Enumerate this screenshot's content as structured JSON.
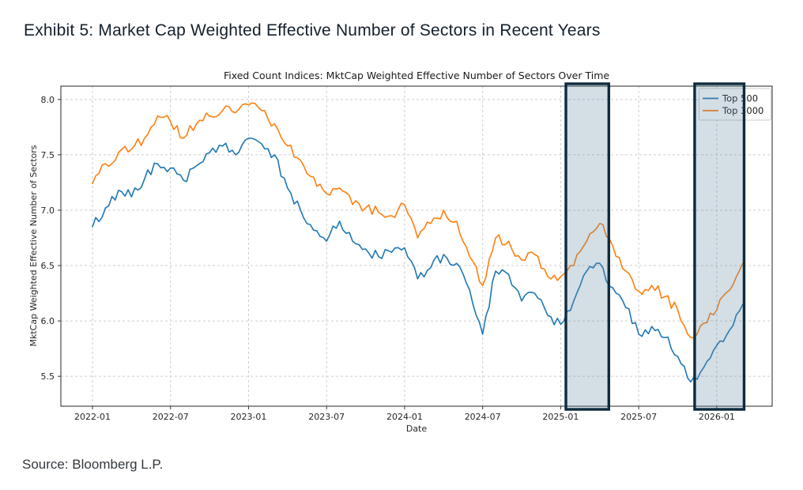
{
  "header": {
    "title": "Exhibit 5: Market Cap Weighted Effective Number of Sectors in Recent Years"
  },
  "footer": {
    "source": "Source: Bloomberg L.P."
  },
  "chart_data": {
    "type": "line",
    "title": "Fixed Count Indices: MktCap Weighted Effective Number of Sectors Over Time",
    "xlabel": "Date",
    "ylabel": "MktCap Weighted Effective Number of Sectors",
    "grid": true,
    "legend_position": "upper right",
    "x_start": "2022-01",
    "x_step_months": 1,
    "x_axis": {
      "range_months": [
        -2.43,
        52.26
      ],
      "ticks": [
        {
          "m": 0,
          "label": "2022-01"
        },
        {
          "m": 6,
          "label": "2022-07"
        },
        {
          "m": 12,
          "label": "2023-01"
        },
        {
          "m": 18,
          "label": "2023-07"
        },
        {
          "m": 24,
          "label": "2024-01"
        },
        {
          "m": 30,
          "label": "2024-07"
        },
        {
          "m": 36,
          "label": "2025-01"
        },
        {
          "m": 42,
          "label": "2025-07"
        },
        {
          "m": 48,
          "label": "2026-01"
        }
      ]
    },
    "y_axis": {
      "range": [
        5.23,
        8.12
      ],
      "ticks": [
        {
          "v": 5.5,
          "label": "5.5"
        },
        {
          "v": 6.0,
          "label": "6.0"
        },
        {
          "v": 6.5,
          "label": "6.5"
        },
        {
          "v": 7.0,
          "label": "7.0"
        },
        {
          "v": 7.5,
          "label": "7.5"
        },
        {
          "v": 8.0,
          "label": "8.0"
        }
      ]
    },
    "series": [
      {
        "name": "Top 500",
        "color": "#1f77b4",
        "values": [
          6.85,
          7.02,
          7.18,
          7.12,
          7.28,
          7.42,
          7.38,
          7.27,
          7.4,
          7.52,
          7.58,
          7.5,
          7.65,
          7.6,
          7.5,
          7.2,
          7.0,
          6.82,
          6.72,
          6.9,
          6.72,
          6.65,
          6.58,
          6.62,
          6.66,
          6.38,
          6.48,
          6.6,
          6.52,
          6.28,
          5.88,
          6.45,
          6.42,
          6.18,
          6.25,
          6.05,
          5.97,
          6.18,
          6.45,
          6.52,
          6.3,
          6.12,
          5.88,
          5.95,
          5.85,
          5.68,
          5.45,
          5.58,
          5.78,
          5.92,
          6.15
        ]
      },
      {
        "name": "Top 3000",
        "color": "#ff7f0e",
        "values": [
          7.24,
          7.42,
          7.52,
          7.55,
          7.65,
          7.85,
          7.8,
          7.65,
          7.78,
          7.85,
          7.9,
          7.88,
          7.95,
          7.9,
          7.78,
          7.58,
          7.45,
          7.3,
          7.15,
          7.2,
          7.05,
          7.02,
          6.98,
          6.95,
          7.05,
          6.75,
          6.88,
          7.0,
          6.9,
          6.58,
          6.32,
          6.75,
          6.72,
          6.55,
          6.6,
          6.4,
          6.4,
          6.5,
          6.72,
          6.88,
          6.68,
          6.45,
          6.27,
          6.32,
          6.22,
          6.1,
          5.85,
          5.98,
          6.1,
          6.28,
          6.52
        ]
      }
    ],
    "highlight_regions": [
      {
        "label": "2025-01 to 2025-04",
        "start_month": 36.4,
        "end_month": 39.7
      },
      {
        "label": "2025-11 to 2026-03",
        "start_month": 46.3,
        "end_month": 50.1
      }
    ],
    "highlight_style": {
      "fill": "rgba(96,136,163,0.28)",
      "border": "#0e2a3d"
    }
  }
}
